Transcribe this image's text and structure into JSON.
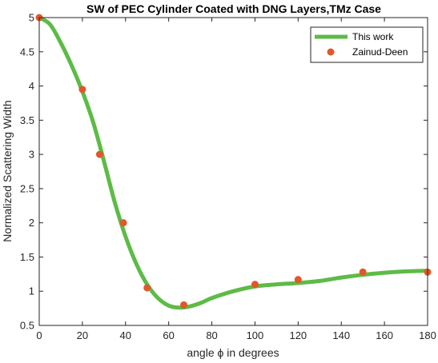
{
  "chart_data": {
    "type": "line",
    "title": "SW of PEC Cylinder Coated with DNG Layers,TMz Case",
    "xlabel": "angle ϕ in degrees",
    "ylabel": "Normalized Scattering Width",
    "xlim": [
      0,
      180
    ],
    "ylim": [
      0.5,
      5
    ],
    "xticks": [
      "0",
      "20",
      "40",
      "60",
      "80",
      "100",
      "120",
      "140",
      "160",
      "180"
    ],
    "yticks": [
      "0.5",
      "1",
      "1.5",
      "2",
      "2.5",
      "3",
      "3.5",
      "4",
      "4.5",
      "5"
    ],
    "legend_position": "top-right",
    "series": [
      {
        "name": "This work",
        "kind": "line",
        "color": "#5dbb46",
        "x": [
          0,
          5,
          10,
          15,
          20,
          25,
          30,
          35,
          40,
          45,
          50,
          55,
          60,
          65,
          70,
          75,
          80,
          90,
          100,
          110,
          120,
          130,
          140,
          150,
          160,
          170,
          180
        ],
        "y": [
          5.0,
          4.9,
          4.63,
          4.3,
          3.92,
          3.47,
          2.9,
          2.3,
          1.8,
          1.4,
          1.1,
          0.9,
          0.79,
          0.76,
          0.78,
          0.83,
          0.9,
          1.0,
          1.07,
          1.1,
          1.12,
          1.15,
          1.2,
          1.24,
          1.27,
          1.29,
          1.3
        ]
      },
      {
        "name": "Zainud-Deen",
        "kind": "scatter",
        "color": "#e0582a",
        "x": [
          0,
          20,
          28,
          39,
          50,
          67,
          100,
          120,
          150,
          180
        ],
        "y": [
          5.0,
          3.95,
          3.0,
          2.0,
          1.05,
          0.8,
          1.1,
          1.17,
          1.28,
          1.28
        ]
      }
    ]
  }
}
